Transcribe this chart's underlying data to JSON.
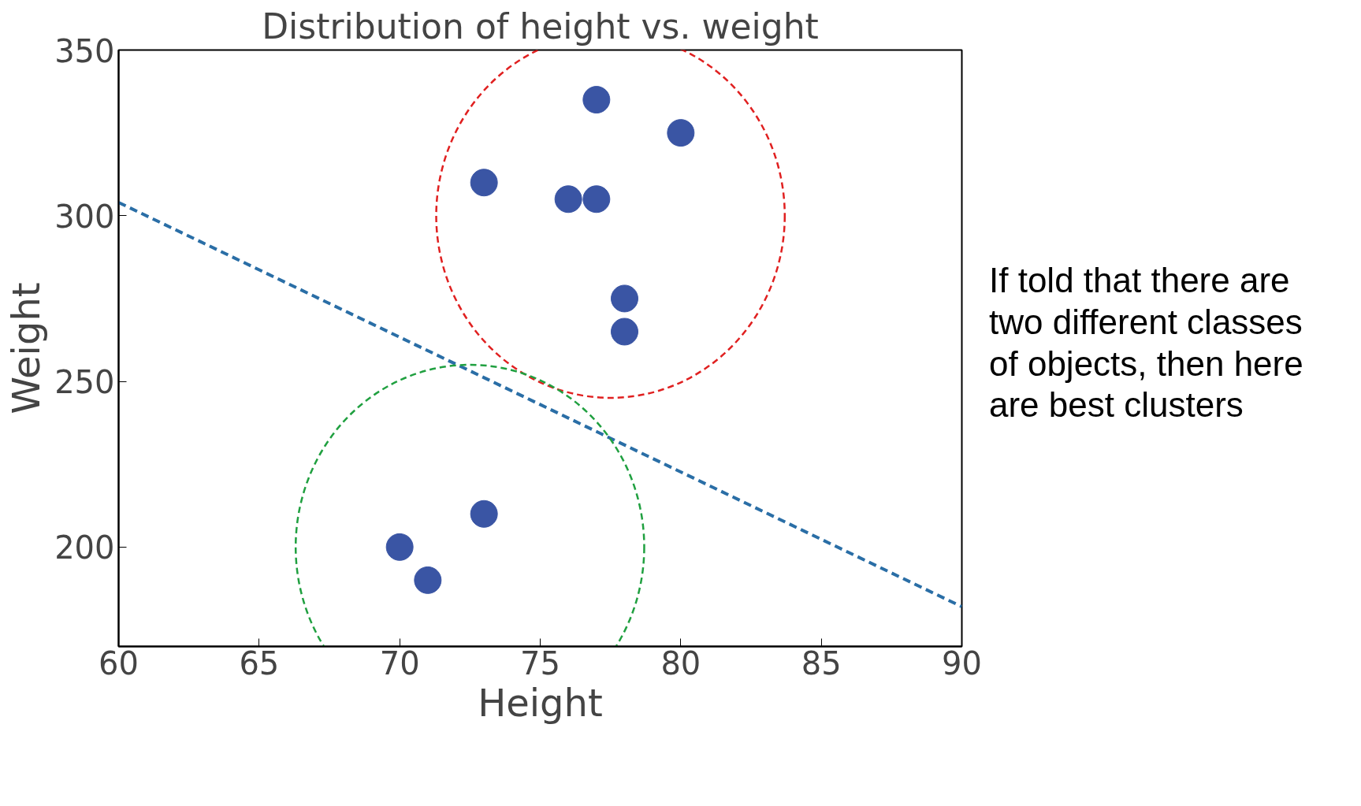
{
  "chart_data": {
    "type": "scatter",
    "title": "Distribution of height vs. weight",
    "xlabel": "Height",
    "ylabel": "Weight",
    "xlim": [
      60,
      90
    ],
    "xticks": [
      60,
      65,
      70,
      75,
      80,
      85,
      90
    ],
    "ylim": [
      170,
      350
    ],
    "yticks": [
      200,
      250,
      300,
      350
    ],
    "grid": false,
    "marker": "circle",
    "series": [
      {
        "color": "#3a55a4",
        "x": [
          77,
          80,
          73,
          76,
          77,
          78,
          78,
          73,
          70,
          71
        ],
        "values": [
          335,
          325,
          310,
          305,
          305,
          275,
          265,
          210,
          200,
          190
        ]
      },
      {
        "type": "line",
        "marker": "none",
        "color": "#2a6ea6",
        "line_style": "dashed",
        "x": [
          60,
          90
        ],
        "values": [
          304,
          182
        ]
      }
    ],
    "annotations": [
      "If told that there are two different classes of objects, then here are best clusters"
    ]
  }
}
